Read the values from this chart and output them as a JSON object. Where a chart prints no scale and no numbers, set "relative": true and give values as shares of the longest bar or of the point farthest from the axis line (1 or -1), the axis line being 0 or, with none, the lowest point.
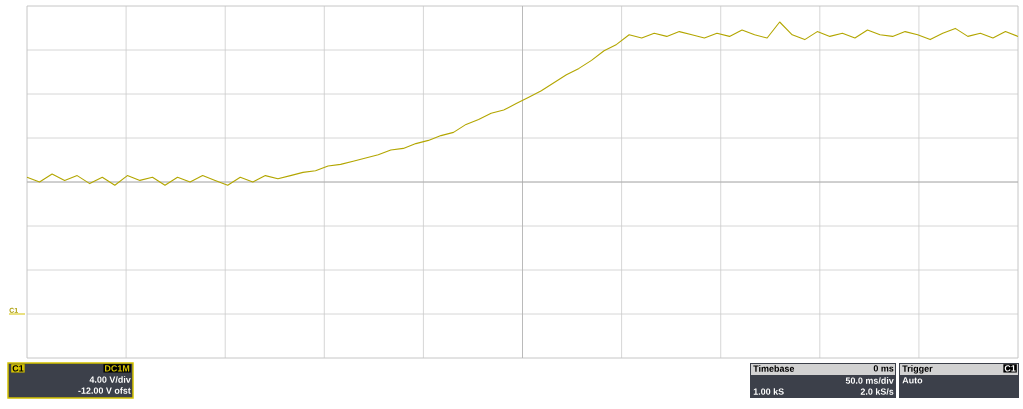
{
  "chart_data": {
    "type": "line",
    "relative": true,
    "grid": true,
    "marker": "none",
    "line_style": "solid",
    "categories": [
      null,
      null,
      null,
      null,
      null,
      null,
      null,
      null,
      null,
      null,
      null,
      null,
      null,
      null,
      null,
      null,
      null,
      null,
      null,
      null,
      null,
      null,
      null,
      null,
      null,
      null,
      null,
      null,
      null,
      null,
      null,
      null,
      null,
      null,
      null,
      null,
      null,
      null,
      null,
      null,
      null,
      null,
      null,
      null,
      null,
      null,
      null,
      null,
      null,
      null,
      null,
      null,
      null,
      null,
      null,
      null,
      null,
      null,
      null,
      null,
      null,
      null,
      null,
      null,
      null,
      null,
      null,
      null,
      null,
      null,
      null,
      null,
      null,
      null,
      null,
      null,
      null,
      null,
      null,
      null
    ],
    "series": [
      {
        "color": "#b3a600",
        "values": [
          0.03,
          0.0,
          0.05,
          0.01,
          0.04,
          -0.01,
          0.03,
          -0.02,
          0.04,
          0.01,
          0.03,
          -0.02,
          0.03,
          0.0,
          0.04,
          0.01,
          -0.02,
          0.03,
          0.0,
          0.04,
          0.02,
          0.04,
          0.06,
          0.07,
          0.1,
          0.11,
          0.13,
          0.15,
          0.17,
          0.2,
          0.21,
          0.24,
          0.26,
          0.29,
          0.31,
          0.36,
          0.39,
          0.43,
          0.45,
          0.49,
          0.53,
          0.57,
          0.62,
          0.67,
          0.71,
          0.76,
          0.82,
          0.86,
          0.92,
          0.9,
          0.93,
          0.91,
          0.94,
          0.92,
          0.9,
          0.93,
          0.91,
          0.95,
          0.92,
          0.9,
          1.0,
          0.92,
          0.89,
          0.94,
          0.91,
          0.93,
          0.9,
          0.95,
          0.92,
          0.91,
          0.94,
          0.92,
          0.89,
          0.93,
          0.96,
          0.91,
          0.93,
          0.9,
          0.94,
          0.91
        ]
      }
    ],
    "annotations": [
      "C1",
      "DC1M",
      "4.00 V/div",
      "-12.00 V ofst",
      "Timebase",
      "0 ms",
      "50.0 ms/div",
      "1.00 kS",
      "2.0 kS/s",
      "Trigger",
      "C1",
      "Auto",
      "C1"
    ]
  }
}
